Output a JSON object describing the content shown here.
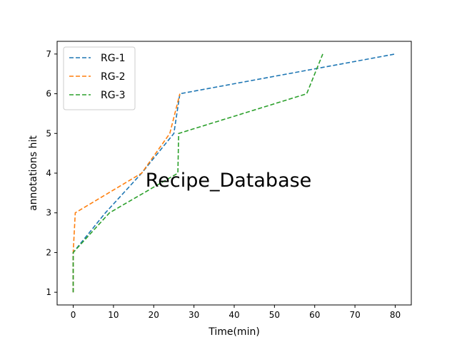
{
  "chart_data": {
    "type": "line",
    "title": "",
    "overlay_text": "Recipe_Database",
    "xlabel": "Time(min)",
    "ylabel": "annotations hit",
    "xlim": [
      -4,
      84
    ],
    "ylim": [
      0.68,
      7.32
    ],
    "xticks": [
      0,
      10,
      20,
      30,
      40,
      50,
      60,
      70,
      80
    ],
    "yticks": [
      1,
      2,
      3,
      4,
      5,
      6,
      7
    ],
    "grid": false,
    "legend_position": "top-left",
    "series": [
      {
        "name": "RG-1",
        "color": "#1f77b4",
        "style": "dashed",
        "x": [
          0,
          0,
          8,
          17,
          25,
          26.5,
          80
        ],
        "y": [
          1,
          2,
          3,
          4,
          5,
          6,
          7
        ]
      },
      {
        "name": "RG-2",
        "color": "#ff7f0e",
        "style": "dashed",
        "x": [
          0,
          0,
          0.5,
          17,
          24,
          26.5
        ],
        "y": [
          1,
          2,
          3,
          4,
          5,
          6
        ]
      },
      {
        "name": "RG-3",
        "color": "#2ca02c",
        "style": "dashed",
        "x": [
          0,
          0,
          9,
          26,
          26.2,
          58,
          62
        ],
        "y": [
          1,
          2,
          3,
          4,
          5,
          6,
          7
        ]
      }
    ]
  }
}
